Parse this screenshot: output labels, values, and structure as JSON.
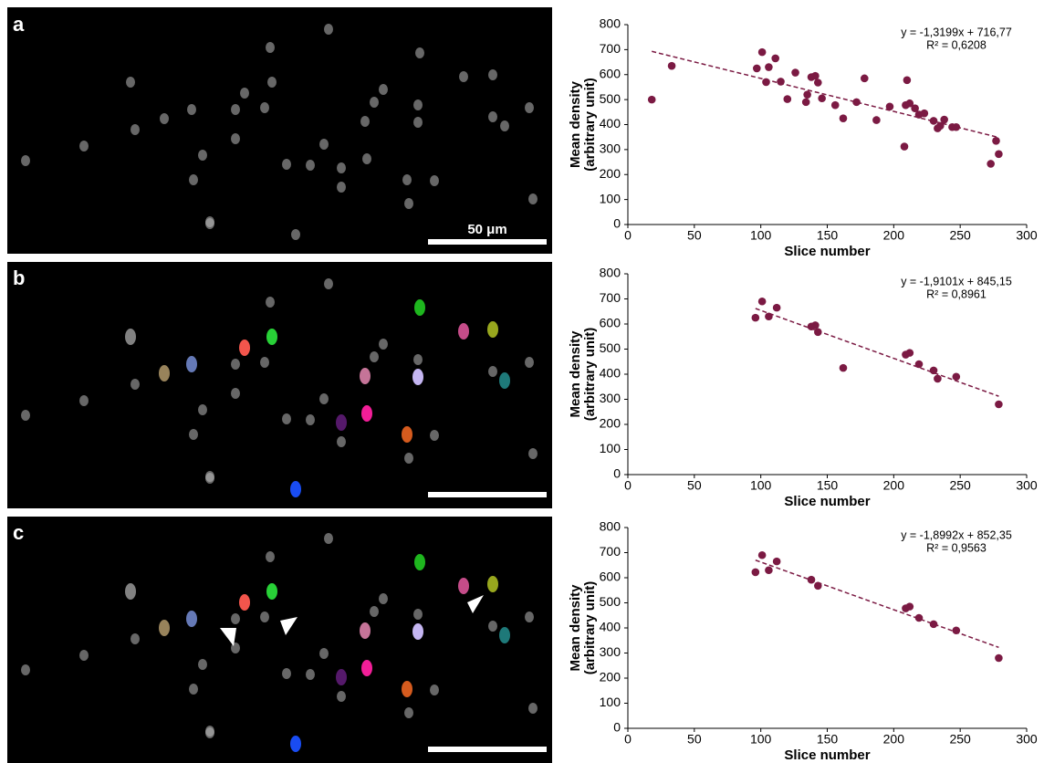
{
  "panel_labels": [
    "a",
    "b",
    "c"
  ],
  "scale_bar_label": "50 μm",
  "chart_data": [
    {
      "type": "scatter",
      "xlabel": "Slice number",
      "ylabel": [
        "Mean density",
        "(arbitrary unit)"
      ],
      "x": [
        18,
        33,
        97,
        101,
        104,
        106,
        111,
        115,
        120,
        126,
        134,
        135,
        138,
        141,
        143,
        146,
        156,
        162,
        172,
        178,
        187,
        197,
        208,
        209,
        210,
        212,
        216,
        219,
        223,
        230,
        233,
        235,
        238,
        244,
        247,
        273,
        277,
        279
      ],
      "values": [
        500,
        635,
        625,
        690,
        570,
        630,
        665,
        572,
        502,
        608,
        490,
        520,
        590,
        595,
        568,
        505,
        478,
        425,
        490,
        585,
        418,
        472,
        312,
        478,
        578,
        485,
        465,
        440,
        445,
        415,
        385,
        395,
        420,
        390,
        390,
        243,
        335,
        282
      ],
      "color": "#7b1a43",
      "trendline": {
        "slope": -1.3199,
        "intercept": 716.77,
        "label": "y = -1,3199x + 716,77",
        "r2_label": "R² = 0,6208"
      },
      "xlim": [
        0,
        300
      ],
      "ylim": [
        0,
        800
      ],
      "xticks": [
        0,
        50,
        100,
        150,
        200,
        250,
        300
      ],
      "yticks": [
        0,
        100,
        200,
        300,
        400,
        500,
        600,
        700,
        800
      ]
    },
    {
      "type": "scatter",
      "xlabel": "Slice number",
      "ylabel": [
        "Mean density",
        "(arbitrary unit)"
      ],
      "x": [
        96,
        101,
        106,
        112,
        138,
        141,
        143,
        162,
        209,
        212,
        219,
        230,
        233,
        247,
        279
      ],
      "values": [
        625,
        690,
        630,
        665,
        590,
        595,
        568,
        425,
        478,
        485,
        440,
        415,
        382,
        390,
        280
      ],
      "color": "#7b1a43",
      "trendline": {
        "slope": -1.9101,
        "intercept": 845.15,
        "label": "y = -1,9101x + 845,15",
        "r2_label": "R² = 0,8961"
      },
      "xlim": [
        0,
        300
      ],
      "ylim": [
        0,
        800
      ],
      "xticks": [
        0,
        50,
        100,
        150,
        200,
        250,
        300
      ],
      "yticks": [
        0,
        100,
        200,
        300,
        400,
        500,
        600,
        700,
        800
      ]
    },
    {
      "type": "scatter",
      "xlabel": "Slice number",
      "ylabel": [
        "Mean density",
        "(arbitrary unit)"
      ],
      "x": [
        96,
        101,
        106,
        112,
        138,
        143,
        209,
        212,
        219,
        230,
        247,
        279
      ],
      "values": [
        622,
        690,
        630,
        665,
        592,
        568,
        478,
        485,
        440,
        415,
        390,
        280
      ],
      "color": "#7b1a43",
      "trendline": {
        "slope": -1.8992,
        "intercept": 852.35,
        "label": "y = -1,8992x + 852,35",
        "r2_label": "R² = 0,9563"
      },
      "xlim": [
        0,
        300
      ],
      "ylim": [
        0,
        800
      ],
      "xticks": [
        0,
        50,
        100,
        150,
        200,
        250,
        300
      ],
      "yticks": [
        0,
        100,
        200,
        300,
        400,
        500,
        600,
        700,
        800
      ]
    }
  ]
}
